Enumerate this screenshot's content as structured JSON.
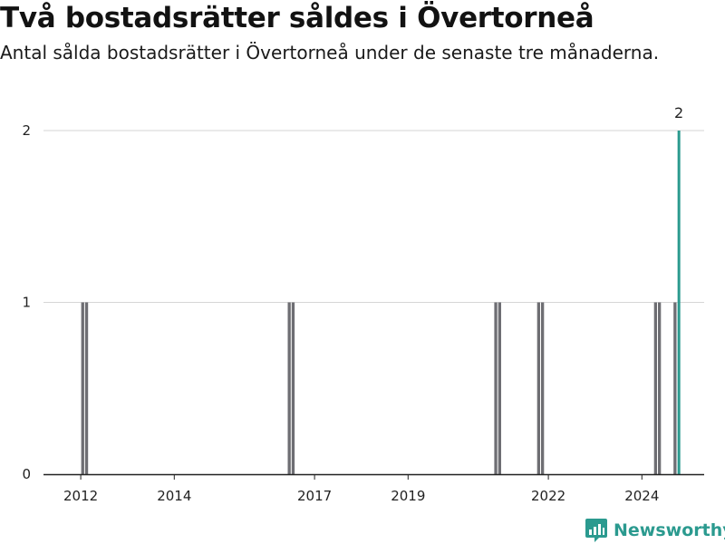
{
  "title": "Två bostadsrätter såldes i Övertorneå",
  "subtitle": "Antal sålda bostadsrätter i Övertorneå under de senaste tre månaderna.",
  "brand": {
    "name": "Newsworthy",
    "icon": "newsworthy-logo-icon",
    "color": "#2b9a8f"
  },
  "chart_data": {
    "type": "bar",
    "y_ticks": [
      0,
      1,
      2
    ],
    "ylim": [
      0,
      2
    ],
    "x_ticks": [
      "2012",
      "2014",
      "2017",
      "2019",
      "2022",
      "2024"
    ],
    "grid": true,
    "colors": {
      "default": "#6e6e73",
      "highlight": "#2b9a8f"
    },
    "bars": [
      {
        "period": "2012-01",
        "value": 1
      },
      {
        "period": "2012-02",
        "value": 1
      },
      {
        "period": "2016-06",
        "value": 1
      },
      {
        "period": "2016-07",
        "value": 1
      },
      {
        "period": "2020-11",
        "value": 1
      },
      {
        "period": "2020-12",
        "value": 1
      },
      {
        "period": "2021-10",
        "value": 1
      },
      {
        "period": "2021-11",
        "value": 1
      },
      {
        "period": "2024-04",
        "value": 1
      },
      {
        "period": "2024-05",
        "value": 1
      },
      {
        "period": "2024-09",
        "value": 1
      },
      {
        "period": "2024-10",
        "value": 2,
        "highlight": true,
        "label": "2"
      }
    ]
  }
}
